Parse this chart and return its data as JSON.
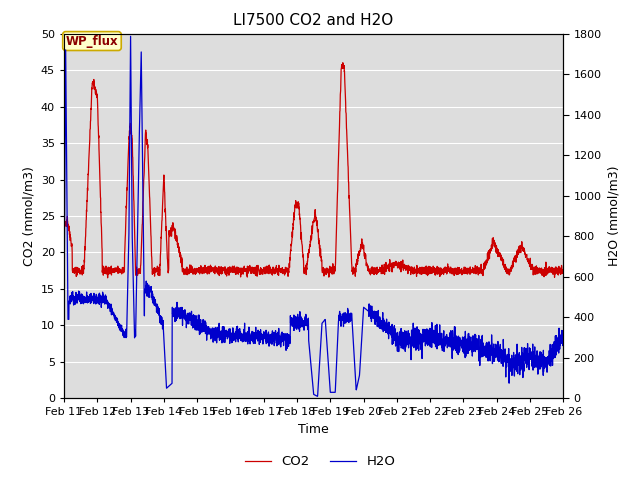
{
  "title": "LI7500 CO2 and H2O",
  "xlabel": "Time",
  "ylabel_left": "CO2 (mmol/m3)",
  "ylabel_right": "H2O (mmol/m3)",
  "xlim_start": 11.0,
  "xlim_end": 26.0,
  "ylim_left": [
    0,
    50
  ],
  "ylim_right": [
    0,
    1800
  ],
  "xtick_labels": [
    "Feb 11",
    "Feb 12",
    "Feb 13",
    "Feb 14",
    "Feb 15",
    "Feb 16",
    "Feb 17",
    "Feb 18",
    "Feb 19",
    "Feb 20",
    "Feb 21",
    "Feb 22",
    "Feb 23",
    "Feb 24",
    "Feb 25",
    "Feb 26"
  ],
  "xtick_positions": [
    11,
    12,
    13,
    14,
    15,
    16,
    17,
    18,
    19,
    20,
    21,
    22,
    23,
    24,
    25,
    26
  ],
  "co2_color": "#cc0000",
  "h2o_color": "#0000cc",
  "legend_label_co2": "CO2",
  "legend_label_h2o": "H2O",
  "annotation_text": "WP_flux",
  "plot_bg_color": "#dddddd",
  "title_fontsize": 11,
  "axis_label_fontsize": 9,
  "tick_fontsize": 8
}
